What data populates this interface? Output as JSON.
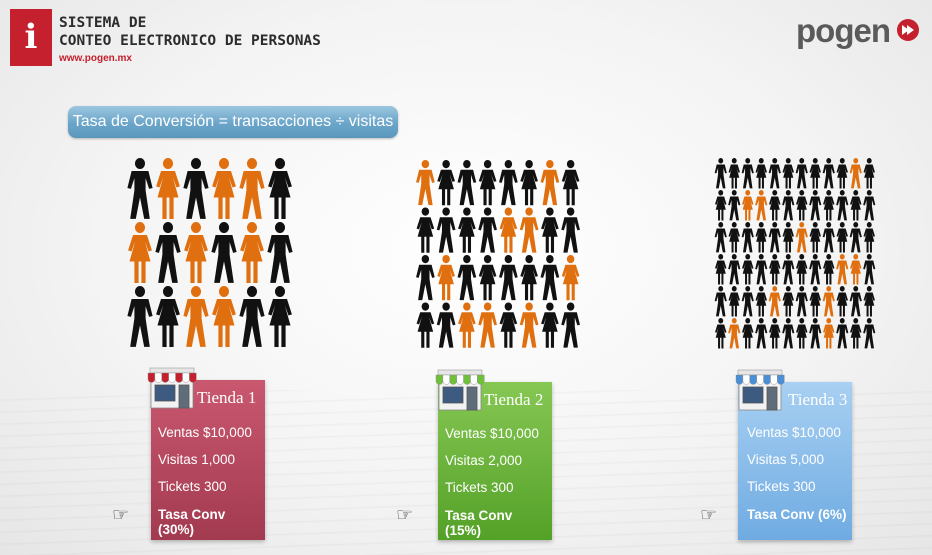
{
  "header": {
    "logo_letter": "i",
    "title_line1": "SISTEMA DE",
    "title_line2": "CONTEO ELECTRONICO DE PERSONAS",
    "url": "www.pogen.mx",
    "brand": "pogen",
    "brand_color": "#c4202e"
  },
  "formula": "Tasa de Conversión  =  transacciones ÷ visitas",
  "colors": {
    "person_dark": "#111111",
    "person_highlight": "#e0700f"
  },
  "crowds": [
    {
      "cols": 6,
      "rows": 3,
      "highlight": [
        [
          0,
          1
        ],
        [
          0,
          3
        ],
        [
          0,
          4
        ],
        [
          1,
          0
        ],
        [
          1,
          2
        ],
        [
          1,
          4
        ],
        [
          2,
          2
        ],
        [
          2,
          3
        ]
      ]
    },
    {
      "cols": 8,
      "rows": 4,
      "highlight": [
        [
          0,
          0
        ],
        [
          0,
          6
        ],
        [
          1,
          4
        ],
        [
          1,
          5
        ],
        [
          2,
          1
        ],
        [
          2,
          7
        ],
        [
          3,
          2
        ],
        [
          3,
          3
        ],
        [
          3,
          5
        ]
      ]
    },
    {
      "cols": 12,
      "rows": 6,
      "highlight": [
        [
          0,
          10
        ],
        [
          1,
          2
        ],
        [
          1,
          3
        ],
        [
          2,
          6
        ],
        [
          3,
          9
        ],
        [
          3,
          10
        ],
        [
          4,
          4
        ],
        [
          4,
          8
        ],
        [
          5,
          1
        ],
        [
          5,
          8
        ]
      ]
    }
  ],
  "stores": [
    {
      "name": "Tienda 1",
      "ventas": "Ventas $10,000",
      "visitas": " Visitas 1,000",
      "tickets": "Tickets 300",
      "conv": "Tasa Conv (30%)",
      "color_top": "#c9586f",
      "color_bottom": "#a23a50",
      "awning": "#c4202e"
    },
    {
      "name": "Tienda 2",
      "ventas": "Ventas $10,000",
      "visitas": "Visitas 2,000",
      "tickets": "Tickets 300",
      "conv": "Tasa Conv (15%)",
      "color_top": "#86c753",
      "color_bottom": "#54a128",
      "awning": "#6fbf3a"
    },
    {
      "name": "Tienda 3",
      "ventas": "Ventas $10,000",
      "visitas": " Visitas 5,000",
      "tickets": "Tickets 300",
      "conv": "Tasa Conv (6%)",
      "color_top": "#a8d0f2",
      "color_bottom": "#6fabe2",
      "awning": "#4a8fd6"
    }
  ],
  "pointer_icon": "hand-pointing-right-icon"
}
